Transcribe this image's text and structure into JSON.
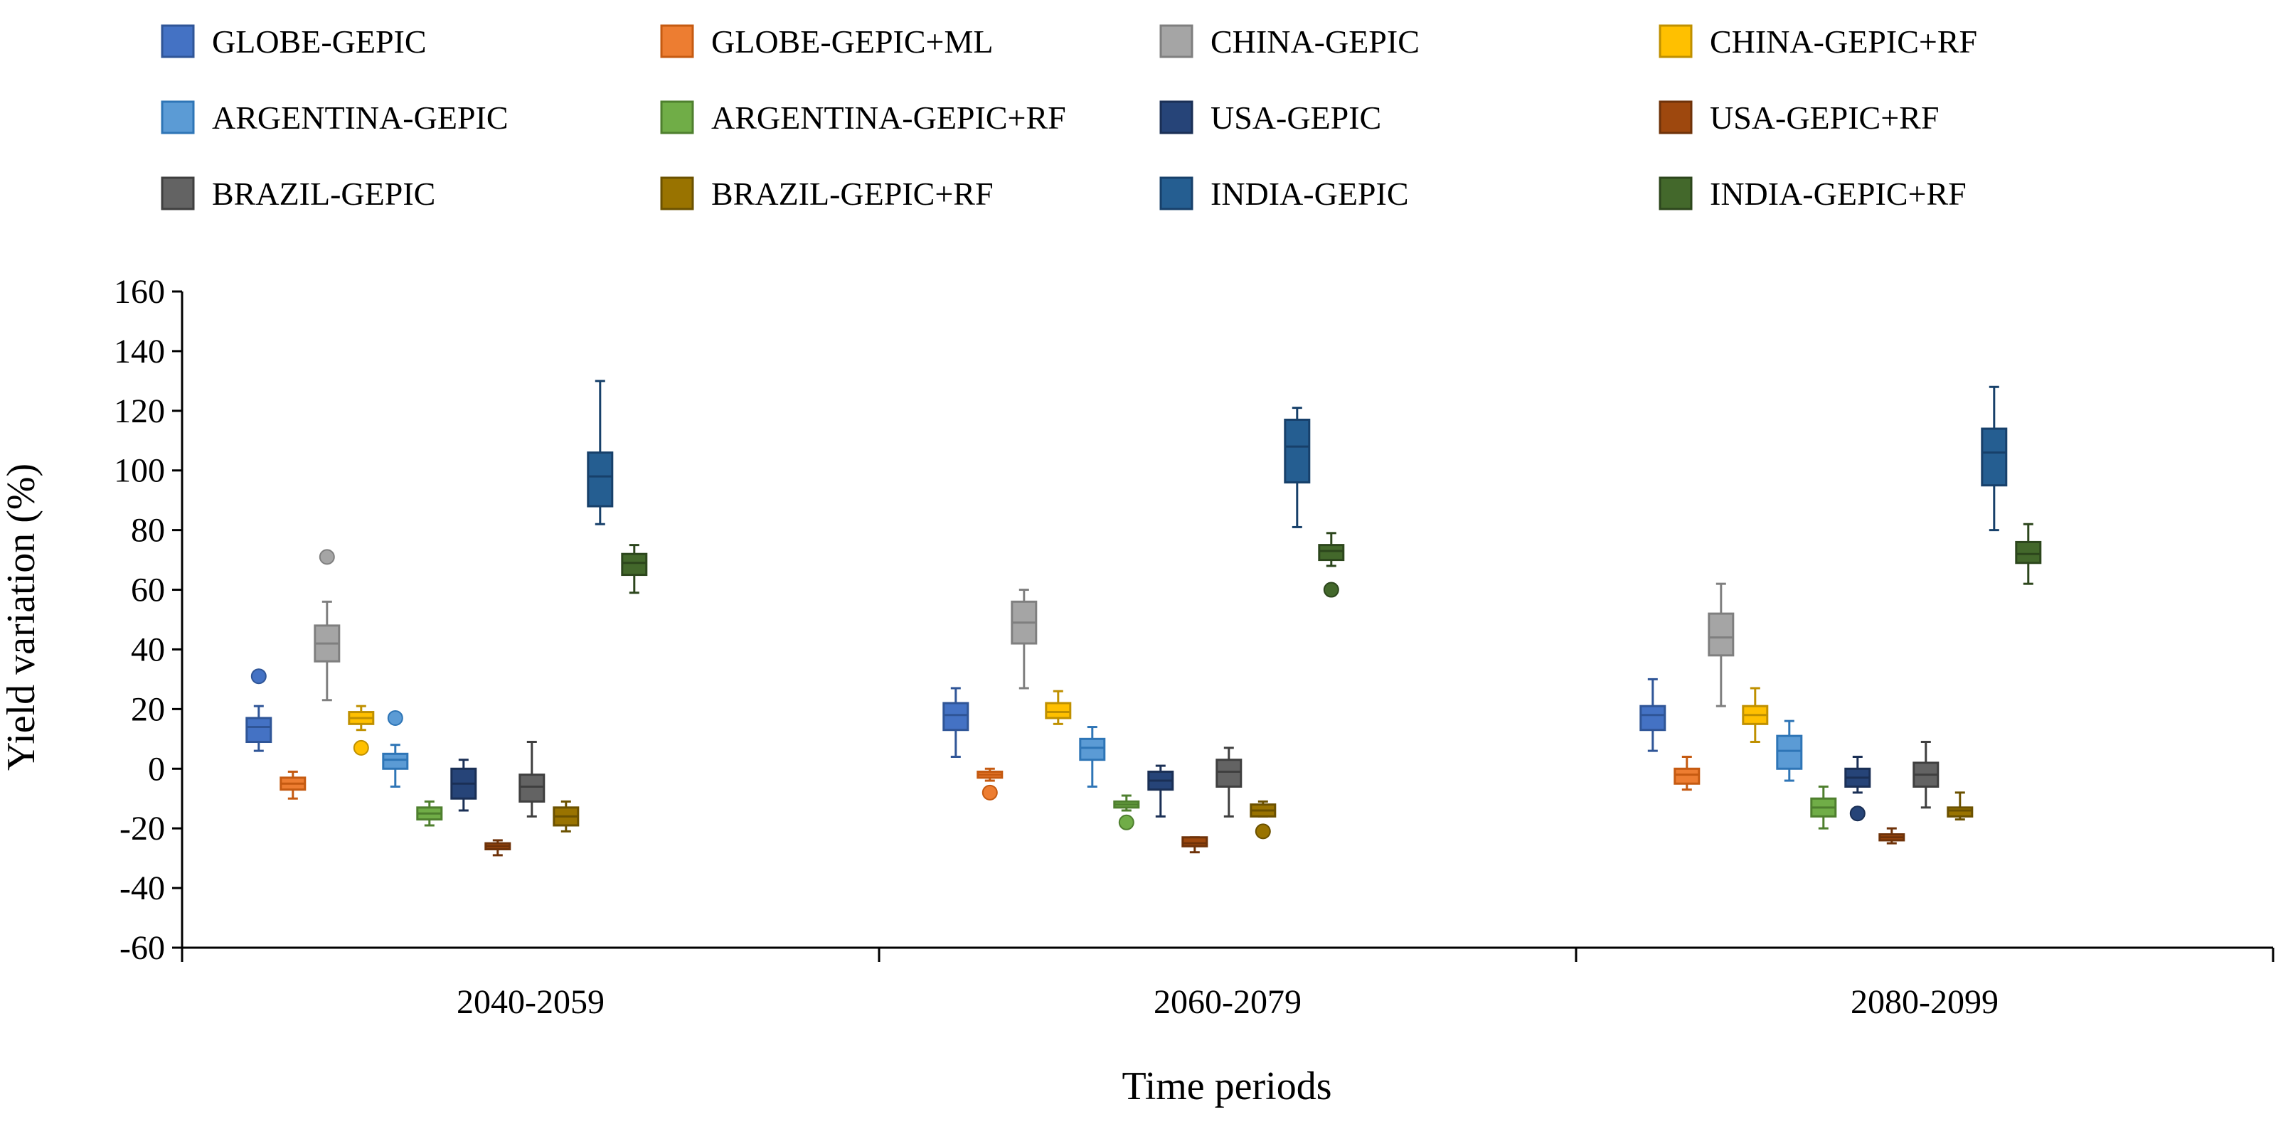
{
  "chart_data": {
    "type": "boxplot",
    "xlabel": "Time periods",
    "ylabel": "Yield variation (%)",
    "ylim": [
      -60,
      160
    ],
    "yticks": [
      -60,
      -40,
      -20,
      0,
      20,
      40,
      60,
      80,
      100,
      120,
      140,
      160
    ],
    "categories": [
      "2040-2059",
      "2060-2079",
      "2080-2099"
    ],
    "legend_position": "top",
    "grid": false,
    "series": [
      {
        "name": "GLOBE-GEPIC",
        "color": "#4472C4",
        "stroke": "#2F5597",
        "boxes": [
          {
            "min": 6,
            "q1": 9,
            "median": 14,
            "q3": 17,
            "max": 21,
            "outliers": [
              31
            ]
          },
          {
            "min": 4,
            "q1": 13,
            "median": 18,
            "q3": 22,
            "max": 27,
            "outliers": []
          },
          {
            "min": 6,
            "q1": 13,
            "median": 18,
            "q3": 21,
            "max": 30,
            "outliers": []
          }
        ]
      },
      {
        "name": "GLOBE-GEPIC+ML",
        "color": "#ED7D31",
        "stroke": "#C55A11",
        "boxes": [
          {
            "min": -10,
            "q1": -7,
            "median": -5,
            "q3": -3,
            "max": -1,
            "outliers": []
          },
          {
            "min": -4,
            "q1": -3,
            "median": -2,
            "q3": -1,
            "max": 0,
            "outliers": [
              -8
            ]
          },
          {
            "min": -7,
            "q1": -5,
            "median": -2,
            "q3": 0,
            "max": 4,
            "outliers": []
          }
        ]
      },
      {
        "name": "CHINA-GEPIC",
        "color": "#A5A5A5",
        "stroke": "#7F7F7F",
        "boxes": [
          {
            "min": 23,
            "q1": 36,
            "median": 42,
            "q3": 48,
            "max": 56,
            "outliers": [
              71
            ]
          },
          {
            "min": 27,
            "q1": 42,
            "median": 49,
            "q3": 56,
            "max": 60,
            "outliers": []
          },
          {
            "min": 21,
            "q1": 38,
            "median": 44,
            "q3": 52,
            "max": 62,
            "outliers": []
          }
        ]
      },
      {
        "name": "CHINA-GEPIC+RF",
        "color": "#FFC000",
        "stroke": "#BF9000",
        "boxes": [
          {
            "min": 13,
            "q1": 15,
            "median": 17,
            "q3": 19,
            "max": 21,
            "outliers": [
              7
            ]
          },
          {
            "min": 15,
            "q1": 17,
            "median": 19,
            "q3": 22,
            "max": 26,
            "outliers": []
          },
          {
            "min": 9,
            "q1": 15,
            "median": 18,
            "q3": 21,
            "max": 27,
            "outliers": []
          }
        ]
      },
      {
        "name": "ARGENTINA-GEPIC",
        "color": "#5B9BD5",
        "stroke": "#2E75B6",
        "boxes": [
          {
            "min": -6,
            "q1": 0,
            "median": 3,
            "q3": 5,
            "max": 8,
            "outliers": [
              17
            ]
          },
          {
            "min": -6,
            "q1": 3,
            "median": 7,
            "q3": 10,
            "max": 14,
            "outliers": []
          },
          {
            "min": -4,
            "q1": 0,
            "median": 6,
            "q3": 11,
            "max": 16,
            "outliers": []
          }
        ]
      },
      {
        "name": "ARGENTINA-GEPIC+RF",
        "color": "#70AD47",
        "stroke": "#4E7F2E",
        "boxes": [
          {
            "min": -19,
            "q1": -17,
            "median": -15,
            "q3": -13,
            "max": -11,
            "outliers": []
          },
          {
            "min": -14,
            "q1": -13,
            "median": -12,
            "q3": -11,
            "max": -9,
            "outliers": [
              -18
            ]
          },
          {
            "min": -20,
            "q1": -16,
            "median": -13,
            "q3": -10,
            "max": -6,
            "outliers": []
          }
        ]
      },
      {
        "name": "USA-GEPIC",
        "color": "#264478",
        "stroke": "#1A2F55",
        "boxes": [
          {
            "min": -14,
            "q1": -10,
            "median": -5,
            "q3": 0,
            "max": 3,
            "outliers": []
          },
          {
            "min": -16,
            "q1": -7,
            "median": -4,
            "q3": -1,
            "max": 1,
            "outliers": []
          },
          {
            "min": -8,
            "q1": -6,
            "median": -3,
            "q3": 0,
            "max": 4,
            "outliers": [
              -15
            ]
          }
        ]
      },
      {
        "name": "USA-GEPIC+RF",
        "color": "#9E480E",
        "stroke": "#6E3209",
        "boxes": [
          {
            "min": -29,
            "q1": -27,
            "median": -26,
            "q3": -25,
            "max": -24,
            "outliers": []
          },
          {
            "min": -28,
            "q1": -26,
            "median": -25,
            "q3": -23,
            "max": -23,
            "outliers": []
          },
          {
            "min": -25,
            "q1": -24,
            "median": -23,
            "q3": -22,
            "max": -20,
            "outliers": []
          }
        ]
      },
      {
        "name": "BRAZIL-GEPIC",
        "color": "#636363",
        "stroke": "#3F3F3F",
        "boxes": [
          {
            "min": -16,
            "q1": -11,
            "median": -6,
            "q3": -2,
            "max": 9,
            "outliers": []
          },
          {
            "min": -16,
            "q1": -6,
            "median": -1,
            "q3": 3,
            "max": 7,
            "outliers": []
          },
          {
            "min": -13,
            "q1": -6,
            "median": -2,
            "q3": 2,
            "max": 9,
            "outliers": []
          }
        ]
      },
      {
        "name": "BRAZIL-GEPIC+RF",
        "color": "#997300",
        "stroke": "#6B5100",
        "boxes": [
          {
            "min": -21,
            "q1": -19,
            "median": -16,
            "q3": -13,
            "max": -11,
            "outliers": []
          },
          {
            "min": -16,
            "q1": -16,
            "median": -14,
            "q3": -12,
            "max": -11,
            "outliers": [
              -21
            ]
          },
          {
            "min": -17,
            "q1": -16,
            "median": -14,
            "q3": -13,
            "max": -8,
            "outliers": []
          }
        ]
      },
      {
        "name": "INDIA-GEPIC",
        "color": "#255E91",
        "stroke": "#17406A",
        "boxes": [
          {
            "min": 82,
            "q1": 88,
            "median": 98,
            "q3": 106,
            "max": 130,
            "outliers": []
          },
          {
            "min": 81,
            "q1": 96,
            "median": 108,
            "q3": 117,
            "max": 121,
            "outliers": []
          },
          {
            "min": 80,
            "q1": 95,
            "median": 106,
            "q3": 114,
            "max": 128,
            "outliers": []
          }
        ]
      },
      {
        "name": "INDIA-GEPIC+RF",
        "color": "#43682B",
        "stroke": "#2C461C",
        "boxes": [
          {
            "min": 59,
            "q1": 65,
            "median": 69,
            "q3": 72,
            "max": 75,
            "outliers": []
          },
          {
            "min": 68,
            "q1": 70,
            "median": 73,
            "q3": 75,
            "max": 79,
            "outliers": [
              60
            ]
          },
          {
            "min": 62,
            "q1": 69,
            "median": 72,
            "q3": 76,
            "max": 82,
            "outliers": []
          }
        ]
      }
    ]
  }
}
